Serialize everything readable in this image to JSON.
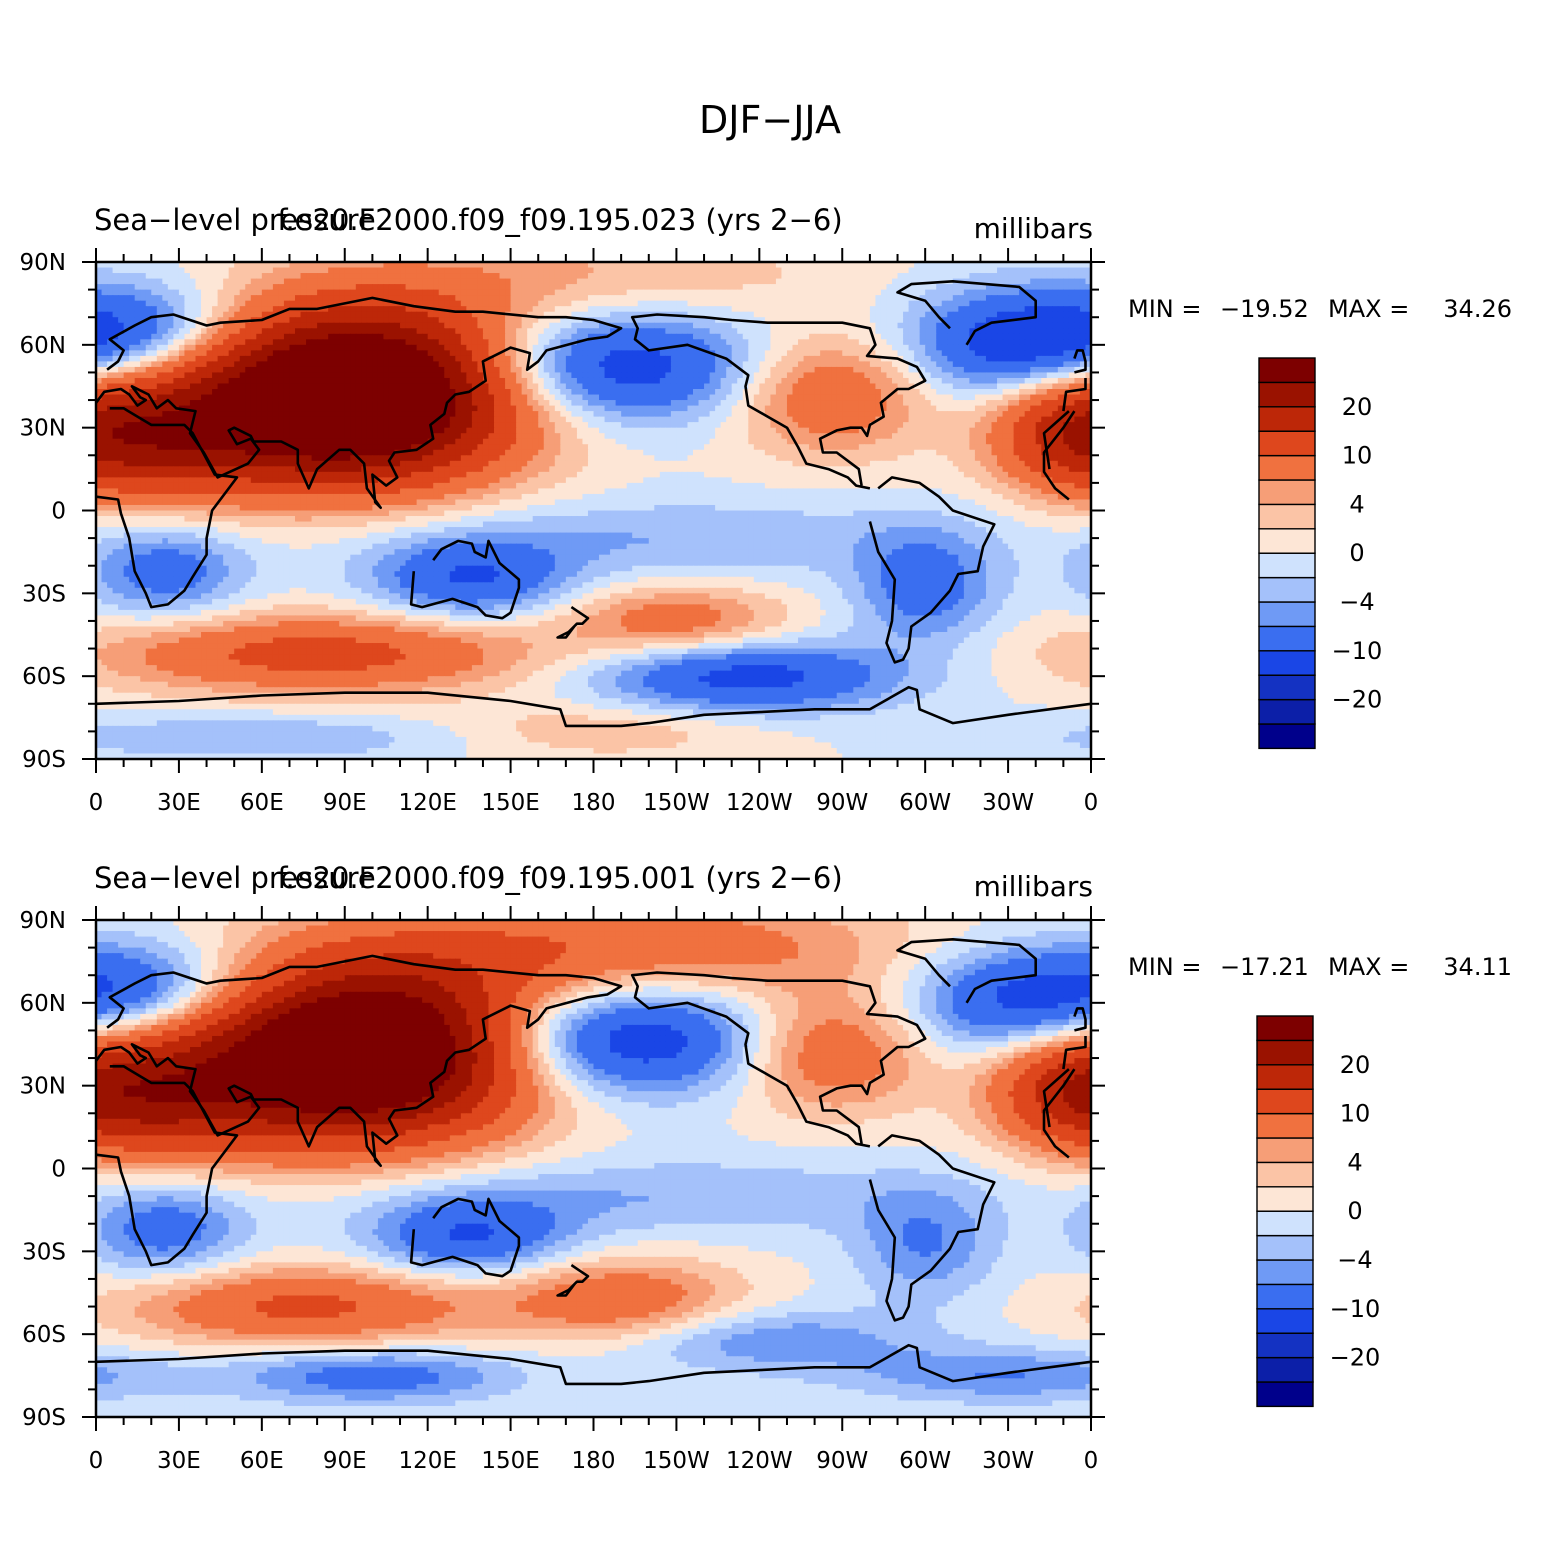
{
  "figure": {
    "title": "DJF−JJA"
  },
  "colors": {
    "levels": [
      "#00008b",
      "#0c1fa8",
      "#1432c2",
      "#1a46e6",
      "#3a6ef0",
      "#6f9af5",
      "#a4c1fa",
      "#cfe2fd",
      "#fde6d6",
      "#fbc4a6",
      "#f69e77",
      "#f0713f",
      "#de471d",
      "#bd2708",
      "#9a1200",
      "#7d0000"
    ],
    "coast": "#000000"
  },
  "chart_data": [
    {
      "type": "heatmap",
      "id": "panel1",
      "left_title": "Sea−level pressure",
      "center_title": "f.e20.F2000.f09_f09.195.023 (yrs 2−6)",
      "units": "millibars",
      "stats": {
        "min_label": "MIN =",
        "min": "−19.52",
        "max_label": "MAX =",
        "max": "34.26"
      },
      "xlim": [
        0,
        360
      ],
      "ylim": [
        -90,
        90
      ],
      "x_ticks": [
        "0",
        "30E",
        "60E",
        "90E",
        "120E",
        "150E",
        "180",
        "150W",
        "120W",
        "90W",
        "60W",
        "30W",
        "0"
      ],
      "y_ticks": [
        "90N",
        "60N",
        "30N",
        "0",
        "30S",
        "60S",
        "90S"
      ],
      "colorbar_labels": [
        "20",
        "10",
        "4",
        "0",
        "−4",
        "−10",
        "−20"
      ],
      "colorbar_levels": [
        -30,
        -25,
        -20,
        -15,
        -10,
        -6,
        -4,
        -2,
        0,
        2,
        4,
        6,
        10,
        15,
        20,
        25
      ],
      "features": [
        {
          "lon": 100,
          "lat": 45,
          "w": 40,
          "h": 22,
          "v": 30
        },
        {
          "lon": 70,
          "lat": 35,
          "w": 45,
          "h": 20,
          "v": 16
        },
        {
          "lon": 20,
          "lat": 25,
          "w": 25,
          "h": 15,
          "v": 12
        },
        {
          "lon": 350,
          "lat": 30,
          "w": 20,
          "h": 15,
          "v": 12
        },
        {
          "lon": 265,
          "lat": 42,
          "w": 25,
          "h": 15,
          "v": 10
        },
        {
          "lon": 180,
          "lat": 85,
          "w": 60,
          "h": 12,
          "v": 4
        },
        {
          "lon": 185,
          "lat": 52,
          "w": 38,
          "h": 14,
          "v": -14
        },
        {
          "lon": 335,
          "lat": 60,
          "w": 28,
          "h": 14,
          "v": -14
        },
        {
          "lon": 20,
          "lat": 65,
          "w": 25,
          "h": 12,
          "v": -9
        },
        {
          "lon": 135,
          "lat": -25,
          "w": 25,
          "h": 10,
          "v": -10
        },
        {
          "lon": 25,
          "lat": -22,
          "w": 20,
          "h": 12,
          "v": -8
        },
        {
          "lon": 300,
          "lat": -28,
          "w": 18,
          "h": 14,
          "v": -8
        },
        {
          "lon": 200,
          "lat": -10,
          "w": 80,
          "h": 10,
          "v": -4
        },
        {
          "lon": 80,
          "lat": -52,
          "w": 55,
          "h": 10,
          "v": 12
        },
        {
          "lon": 210,
          "lat": -40,
          "w": 28,
          "h": 9,
          "v": 8
        },
        {
          "lon": 235,
          "lat": -60,
          "w": 38,
          "h": 9,
          "v": -12
        },
        {
          "lon": 180,
          "lat": -80,
          "w": 40,
          "h": 7,
          "v": 4
        },
        {
          "lon": 60,
          "lat": -82,
          "w": 60,
          "h": 6,
          "v": -4
        }
      ]
    },
    {
      "type": "heatmap",
      "id": "panel2",
      "left_title": "Sea−level pressure",
      "center_title": "f.e20.F2000.f09_f09.195.001 (yrs 2−6)",
      "units": "millibars",
      "stats": {
        "min_label": "MIN =",
        "min": "−17.21",
        "max_label": "MAX =",
        "max": "34.11"
      },
      "xlim": [
        0,
        360
      ],
      "ylim": [
        -90,
        90
      ],
      "x_ticks": [
        "0",
        "30E",
        "60E",
        "90E",
        "120E",
        "150E",
        "180",
        "150W",
        "120W",
        "90W",
        "60W",
        "30W",
        "0"
      ],
      "y_ticks": [
        "90N",
        "60N",
        "30N",
        "0",
        "30S",
        "60S",
        "90S"
      ],
      "colorbar_labels": [
        "20",
        "10",
        "4",
        "0",
        "−4",
        "−10",
        "−20"
      ],
      "colorbar_levels": [
        -30,
        -25,
        -20,
        -15,
        -10,
        -6,
        -4,
        -2,
        0,
        2,
        4,
        6,
        10,
        15,
        20,
        25
      ],
      "features": [
        {
          "lon": 105,
          "lat": 45,
          "w": 40,
          "h": 22,
          "v": 28
        },
        {
          "lon": 70,
          "lat": 35,
          "w": 45,
          "h": 20,
          "v": 16
        },
        {
          "lon": 20,
          "lat": 25,
          "w": 25,
          "h": 15,
          "v": 12
        },
        {
          "lon": 350,
          "lat": 30,
          "w": 20,
          "h": 15,
          "v": 12
        },
        {
          "lon": 265,
          "lat": 42,
          "w": 25,
          "h": 15,
          "v": 10
        },
        {
          "lon": 190,
          "lat": 80,
          "w": 70,
          "h": 14,
          "v": 9
        },
        {
          "lon": 190,
          "lat": 47,
          "w": 38,
          "h": 14,
          "v": -15
        },
        {
          "lon": 335,
          "lat": 60,
          "w": 28,
          "h": 14,
          "v": -12
        },
        {
          "lon": 20,
          "lat": 65,
          "w": 25,
          "h": 12,
          "v": -9
        },
        {
          "lon": 135,
          "lat": -25,
          "w": 25,
          "h": 10,
          "v": -10
        },
        {
          "lon": 25,
          "lat": -22,
          "w": 20,
          "h": 12,
          "v": -8
        },
        {
          "lon": 300,
          "lat": -28,
          "w": 18,
          "h": 14,
          "v": -6
        },
        {
          "lon": 200,
          "lat": -10,
          "w": 80,
          "h": 10,
          "v": -4
        },
        {
          "lon": 75,
          "lat": -50,
          "w": 45,
          "h": 10,
          "v": 11
        },
        {
          "lon": 190,
          "lat": -48,
          "w": 30,
          "h": 11,
          "v": 9
        },
        {
          "lon": 240,
          "lat": -62,
          "w": 40,
          "h": 8,
          "v": -6
        },
        {
          "lon": 100,
          "lat": -75,
          "w": 35,
          "h": 7,
          "v": -8
        },
        {
          "lon": 330,
          "lat": -75,
          "w": 40,
          "h": 7,
          "v": -6
        }
      ]
    }
  ]
}
